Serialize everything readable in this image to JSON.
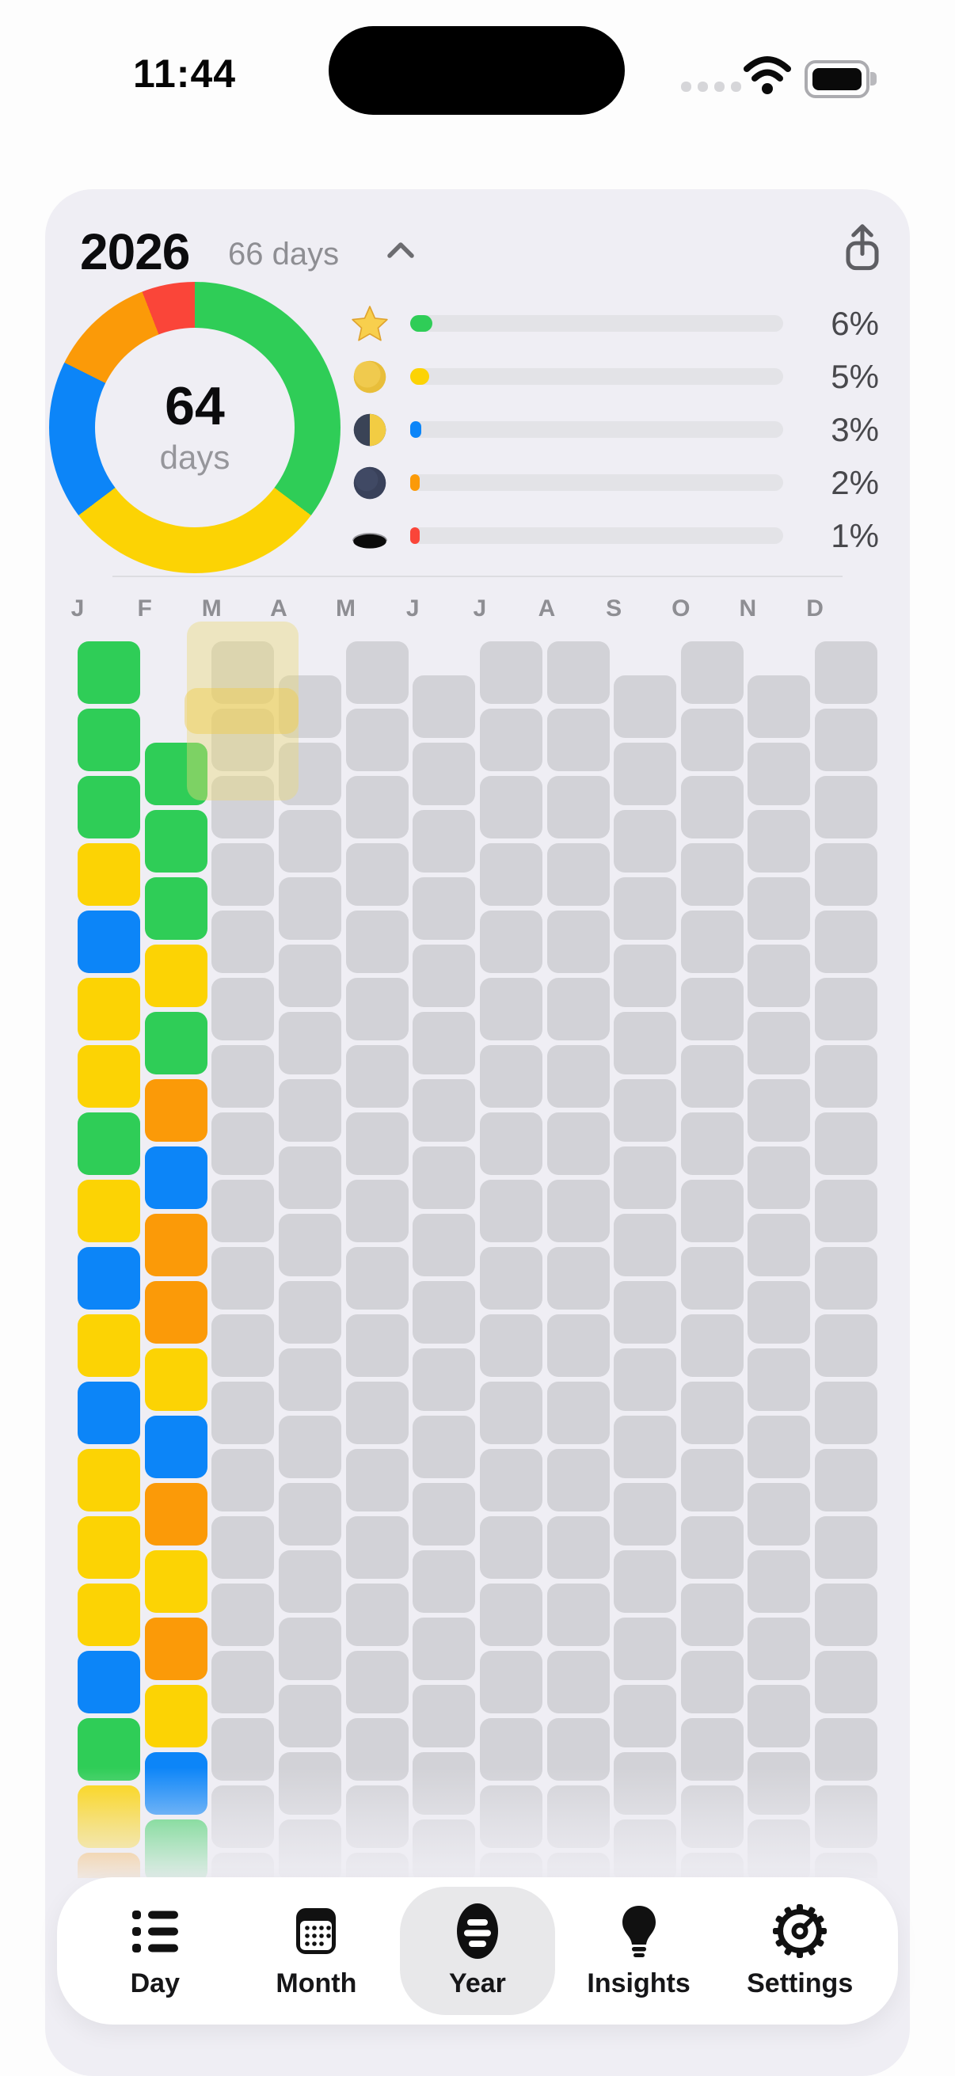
{
  "status_bar": {
    "time": "11:44"
  },
  "header": {
    "year": "2026",
    "days_label": "66 days"
  },
  "donut": {
    "center_value": "64",
    "center_label": "days"
  },
  "legend": [
    {
      "icon": "star-emoji-icon",
      "percent": 6,
      "percent_label": "6%",
      "color": "#2FCD57"
    },
    {
      "icon": "full-moon-emoji-icon",
      "percent": 5,
      "percent_label": "5%",
      "color": "#FCD304"
    },
    {
      "icon": "first-quarter-moon-emoji-icon",
      "percent": 3,
      "percent_label": "3%",
      "color": "#0C85F8"
    },
    {
      "icon": "new-moon-emoji-icon",
      "percent": 2,
      "percent_label": "2%",
      "color": "#FB9A08"
    },
    {
      "icon": "hole-emoji-icon",
      "percent": 1,
      "percent_label": "1%",
      "color": "#FA4539"
    }
  ],
  "grid": {
    "month_letters": [
      "J",
      "F",
      "M",
      "A",
      "M",
      "J",
      "J",
      "A",
      "S",
      "O",
      "N",
      "D"
    ],
    "days_in_month": [
      31,
      28,
      31,
      30,
      31,
      30,
      31,
      31,
      30,
      31,
      30,
      31
    ],
    "row_offsets": [
      0,
      1.5,
      0,
      0.5,
      0,
      0.5,
      0,
      0,
      0.5,
      0,
      0.5,
      0
    ],
    "palette": {
      "G": "#2FCD57",
      "Y": "#FCD304",
      "B": "#0C85F8",
      "O": "#FB9A08",
      "R": "#FA4539",
      "E": "#D2D2D7"
    },
    "cells": [
      "GGGYBYYGYBYBYYYBGYOEEEEEEEEEEEE",
      "GGGYGOBOOYBOYOYBGEEEEEEEEEEE",
      "EEEEEEEEEEEEEEEEEEEEEEEEEEEEEEE",
      "EEEEEEEEEEEEEEEEEEEEEEEEEEEEEE",
      "EEEEEEEEEEEEEEEEEEEEEEEEEEEEEEE",
      "EEEEEEEEEEEEEEEEEEEEEEEEEEEEEE",
      "EEEEEEEEEEEEEEEEEEEEEEEEEEEEEEE",
      "EEEEEEEEEEEEEEEEEEEEEEEEEEEEEEE",
      "EEEEEEEEEEEEEEEEEEEEEEEEEEEEEE",
      "EEEEEEEEEEEEEEEEEEEEEEEEEEEEEEE",
      "EEEEEEEEEEEEEEEEEEEEEEEEEEEEEE",
      "EEEEEEEEEEEEEEEEEEEEEEEEEEEEEEE"
    ]
  },
  "tab_bar": {
    "active": "Year",
    "tabs": [
      {
        "label": "Day",
        "icon": "list-icon"
      },
      {
        "label": "Month",
        "icon": "calendar-icon"
      },
      {
        "label": "Year",
        "icon": "year-grid-icon"
      },
      {
        "label": "Insights",
        "icon": "lightbulb-icon"
      },
      {
        "label": "Settings",
        "icon": "gear-icon"
      }
    ]
  }
}
